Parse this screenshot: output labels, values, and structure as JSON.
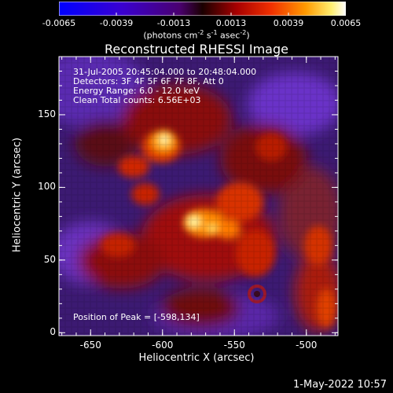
{
  "colorbar": {
    "ticks": [
      "-0.0065",
      "-0.0039",
      "-0.0013",
      "0.0013",
      "0.0039",
      "0.0065"
    ],
    "tick_values": [
      -0.0065,
      -0.0039,
      -0.0013,
      0.0013,
      0.0039,
      0.0065
    ],
    "units_main": "(photons cm",
    "units_sup1": "-2",
    "units_mid1": " s",
    "units_sup2": "-1",
    "units_mid2": " asec",
    "units_sup3": "-2",
    "units_end": ")",
    "range": [
      -0.0065,
      0.0065
    ]
  },
  "plot": {
    "title": "Reconstructed RHESSI Image",
    "info_lines": [
      "31-Jul-2005 20:45:04.000 to 20:48:04.000",
      "Detectors: 3F 4F 5F 6F 7F 8F, Att 0",
      "Energy Range: 6.0 - 12.0 keV",
      "Clean    Total counts: 6.56E+03"
    ],
    "peak_label": "Position of Peak = [-598,134]",
    "x_axis": {
      "label": "Heliocentric X (arcsec)",
      "ticks": [
        "-650",
        "-600",
        "-550",
        "-500"
      ],
      "tick_values": [
        -650,
        -600,
        -550,
        -500
      ],
      "range": [
        -672,
        -478
      ]
    },
    "y_axis": {
      "label": "Heliocentric Y (arcsec)",
      "ticks": [
        "0",
        "50",
        "100",
        "150"
      ],
      "tick_values": [
        0,
        50,
        100,
        150
      ],
      "range": [
        -2,
        190
      ]
    }
  },
  "date_stamp": "1-May-2022 10:57"
}
